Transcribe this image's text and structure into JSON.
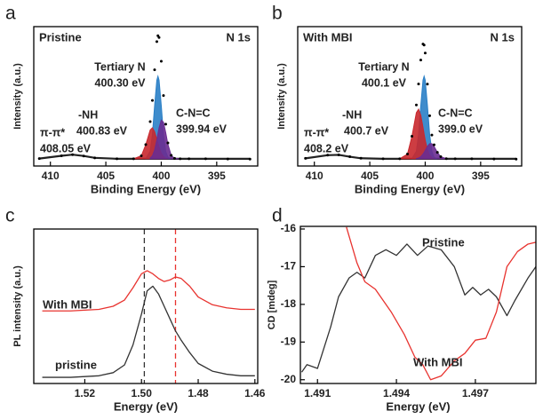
{
  "chart_data": [
    {
      "panel": "a",
      "type": "area",
      "title": "Pristine",
      "label_right": "N 1s",
      "xlabel": "Binding Energy (eV)",
      "ylabel": "Intensity (a.u.)",
      "xlim": [
        411.5,
        391.3
      ],
      "xticks": [
        410,
        405,
        400,
        395
      ],
      "ylim": [
        0,
        1.35
      ],
      "x": [
        411,
        409,
        408,
        407,
        406,
        404,
        402.5,
        401.8,
        401.4,
        401,
        400.8,
        400.6,
        400.4,
        400.3,
        400.2,
        400,
        399.8,
        399.6,
        399.4,
        399.1,
        398.8,
        398.3,
        397.5,
        396,
        394,
        392
      ],
      "series": [
        {
          "name": "π-π*",
          "label": "408.05 eV",
          "color": "#222222",
          "values": [
            0.072,
            0.099,
            0.11,
            0.097,
            0.079,
            0.07,
            0.07,
            0.07,
            0.07,
            0.07,
            0.07,
            0.07,
            0.07,
            0.07,
            0.07,
            0.07,
            0.07,
            0.07,
            0.07,
            0.07,
            0.07,
            0.07,
            0.07,
            0.07,
            0.07,
            0.07
          ]
        },
        {
          "name": "Tertiary N",
          "label": "400.30 eV",
          "color": "#2a7fc6",
          "values": [
            null,
            null,
            null,
            null,
            null,
            null,
            null,
            null,
            0.072,
            0.143,
            0.306,
            0.585,
            0.832,
            0.87,
            0.832,
            0.585,
            0.306,
            0.143,
            0.085,
            0.07,
            null,
            null,
            null,
            null,
            null,
            null
          ]
        },
        {
          "name": "-NH",
          "label": "400.83 eV",
          "color": "#c8282e",
          "values": [
            null,
            null,
            null,
            null,
            null,
            null,
            0.07,
            0.099,
            0.205,
            0.349,
            0.37,
            0.333,
            0.26,
            0.22,
            0.183,
            0.125,
            0.092,
            0.077,
            0.07,
            null,
            null,
            null,
            null,
            null,
            null,
            null
          ]
        },
        {
          "name": "C-N=C",
          "label": "399.94 eV",
          "color": "#6a2c91",
          "values": [
            null,
            null,
            null,
            null,
            null,
            null,
            null,
            null,
            null,
            0.078,
            0.099,
            0.154,
            0.253,
            0.312,
            0.37,
            0.445,
            0.425,
            0.325,
            0.209,
            0.103,
            0.074,
            0.07,
            null,
            null,
            null,
            null
          ]
        }
      ],
      "envelope": {
        "color": "#000000",
        "values": [
          0.072,
          0.099,
          0.11,
          0.097,
          0.079,
          0.07,
          0.07,
          0.099,
          0.207,
          0.43,
          0.635,
          0.932,
          1.205,
          1.262,
          1.245,
          1.015,
          0.683,
          0.405,
          0.224,
          0.103,
          0.074,
          0.07,
          0.07,
          0.07,
          0.068,
          0.067
        ]
      }
    },
    {
      "panel": "b",
      "type": "area",
      "title": "With MBI",
      "label_right": "N 1s",
      "xlabel": "Binding Energy (eV)",
      "ylabel": "Intensity (a.u.)",
      "xlim": [
        411.5,
        391.3
      ],
      "xticks": [
        410,
        405,
        400,
        395
      ],
      "ylim": [
        0,
        1.35
      ],
      "x": [
        410.8,
        408.8,
        407.8,
        406.8,
        405.8,
        403.8,
        402.3,
        401.6,
        401.2,
        400.8,
        400.6,
        400.4,
        400.2,
        400.1,
        400,
        399.8,
        399.6,
        399.4,
        399.2,
        398.9,
        398.6,
        398.1,
        397.3,
        395.8,
        393.8,
        391.8
      ],
      "series": [
        {
          "name": "π-π*",
          "label": "408.2 eV",
          "color": "#222222",
          "values": [
            0.074,
            0.105,
            0.108,
            0.09,
            0.075,
            0.07,
            0.07,
            0.07,
            0.07,
            0.07,
            0.07,
            0.07,
            0.07,
            0.07,
            0.07,
            0.07,
            0.07,
            0.07,
            0.07,
            0.07,
            0.07,
            0.07,
            0.07,
            0.07,
            0.07,
            0.07
          ]
        },
        {
          "name": "Tertiary N",
          "label": "400.1 eV",
          "color": "#2a7fc6",
          "values": [
            null,
            null,
            null,
            null,
            null,
            null,
            null,
            null,
            0.072,
            0.143,
            0.306,
            0.585,
            0.832,
            0.87,
            0.832,
            0.585,
            0.306,
            0.143,
            0.085,
            0.07,
            null,
            null,
            null,
            null,
            null,
            null
          ]
        },
        {
          "name": "-NH",
          "label": "400.7 eV",
          "color": "#c8282e",
          "values": [
            null,
            null,
            null,
            null,
            null,
            null,
            0.07,
            0.116,
            0.286,
            0.516,
            0.55,
            0.491,
            0.374,
            0.31,
            0.251,
            0.158,
            0.105,
            0.081,
            0.07,
            null,
            null,
            null,
            null,
            null,
            null,
            null
          ]
        },
        {
          "name": "C-N=C",
          "label": "399.0 eV",
          "color": "#6a2c91",
          "values": [
            null,
            null,
            null,
            null,
            null,
            null,
            null,
            null,
            null,
            0.072,
            0.078,
            0.09,
            0.115,
            0.132,
            0.151,
            0.19,
            0.216,
            0.216,
            0.19,
            0.132,
            0.09,
            0.071,
            null,
            null,
            null,
            null
          ]
        }
      ],
      "envelope": {
        "color": "#000000",
        "values": [
          0.074,
          0.105,
          0.108,
          0.09,
          0.075,
          0.07,
          0.07,
          0.116,
          0.288,
          0.591,
          0.794,
          1.026,
          1.181,
          1.172,
          1.094,
          0.793,
          0.487,
          0.3,
          0.205,
          0.132,
          0.09,
          0.071,
          0.07,
          0.07,
          0.068,
          0.067
        ]
      }
    },
    {
      "panel": "c",
      "type": "line",
      "xlabel": "Energy (eV)",
      "ylabel": "PL intensity (a.u.)",
      "xlim": [
        1.538,
        1.459
      ],
      "xticks": [
        1.52,
        {
          "value": 1.5,
          "label": "1.50"
        },
        1.48,
        1.46
      ],
      "ylim": [
        0,
        1
      ],
      "x": [
        1.535,
        1.525,
        1.515,
        1.51,
        1.506,
        1.503,
        1.5,
        1.498,
        1.496,
        1.494,
        1.492,
        1.49,
        1.488,
        1.486,
        1.483,
        1.48,
        1.475,
        1.47,
        1.465,
        1.46
      ],
      "series": [
        {
          "name": "With MBI",
          "color": "#e8332f",
          "values": [
            0.47,
            0.47,
            0.48,
            0.5,
            0.54,
            0.62,
            0.71,
            0.73,
            0.71,
            0.68,
            0.66,
            0.67,
            0.69,
            0.68,
            0.63,
            0.56,
            0.51,
            0.49,
            0.48,
            0.48
          ]
        },
        {
          "name": "pristine",
          "color": "#333333",
          "values": [
            0.04,
            0.04,
            0.05,
            0.07,
            0.12,
            0.25,
            0.45,
            0.6,
            0.63,
            0.58,
            0.5,
            0.42,
            0.34,
            0.28,
            0.2,
            0.13,
            0.08,
            0.06,
            0.05,
            0.05
          ]
        }
      ],
      "vlines": [
        {
          "x": 1.499,
          "color": "#333333"
        },
        {
          "x": 1.488,
          "color": "#e8332f"
        }
      ]
    },
    {
      "panel": "d",
      "type": "line",
      "xlabel": "Energy (eV)",
      "ylabel": "CD [mdeg]",
      "xlim": [
        1.49035,
        1.4993
      ],
      "xticks": [
        1.491,
        1.494,
        1.497
      ],
      "ylim": [
        -20.1,
        -15.93
      ],
      "yticks": [
        -16,
        -17,
        -18,
        -19,
        -20
      ],
      "series": [
        {
          "name": "Pristine",
          "color": "#333333",
          "x": [
            1.4904,
            1.4906,
            1.491,
            1.4915,
            1.4918,
            1.4922,
            1.4925,
            1.4928,
            1.4932,
            1.4936,
            1.494,
            1.4944,
            1.4948,
            1.4952,
            1.4957,
            1.4962,
            1.4966,
            1.4969,
            1.4972,
            1.4975,
            1.4978,
            1.4982,
            1.4985,
            1.499,
            1.4993
          ],
          "values": [
            -19.8,
            -19.6,
            -19.7,
            -18.6,
            -17.8,
            -17.3,
            -17.15,
            -17.3,
            -16.7,
            -16.55,
            -16.7,
            -16.4,
            -16.7,
            -16.45,
            -16.55,
            -17.0,
            -17.75,
            -17.55,
            -17.75,
            -17.6,
            -17.8,
            -18.3,
            -17.9,
            -17.3,
            -17.0
          ]
        },
        {
          "name": "With MBI",
          "color": "#e8332f",
          "x": [
            1.4921,
            1.4925,
            1.4928,
            1.4932,
            1.4938,
            1.4943,
            1.4947,
            1.495,
            1.4953,
            1.4957,
            1.4962,
            1.4966,
            1.497,
            1.4974,
            1.4978,
            1.4982,
            1.4986,
            1.499,
            1.4993
          ],
          "values": [
            -15.95,
            -16.9,
            -17.4,
            -17.6,
            -18.2,
            -18.8,
            -19.4,
            -19.6,
            -20.0,
            -19.9,
            -19.5,
            -19.3,
            -18.95,
            -18.9,
            -18.2,
            -17.0,
            -16.6,
            -16.4,
            -16.35
          ]
        }
      ]
    }
  ]
}
